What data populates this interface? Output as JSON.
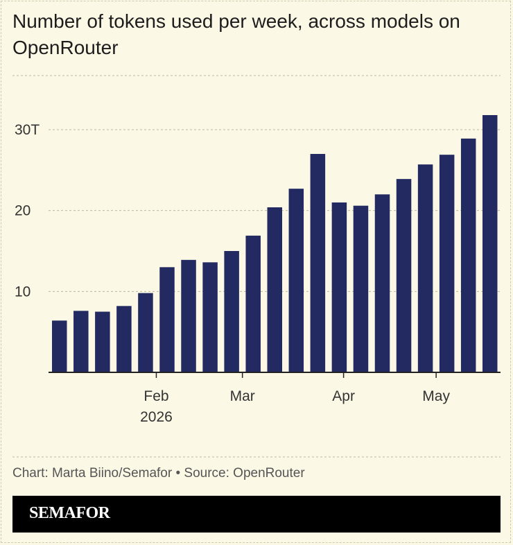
{
  "chart_data": {
    "type": "bar",
    "title": "Number of tokens used per week, across models on OpenRouter",
    "xlabel": "",
    "ylabel": "",
    "y_unit": "T",
    "ylim": [
      0,
      35
    ],
    "yticks": [
      {
        "value": 10,
        "label": "10"
      },
      {
        "value": 20,
        "label": "20"
      },
      {
        "value": 30,
        "label": "30T"
      }
    ],
    "xticks": [
      {
        "after_bar": 4,
        "label": "Feb",
        "sublabel": "2026"
      },
      {
        "after_bar": 8,
        "label": "Mar",
        "sublabel": ""
      },
      {
        "after_bar": 12.7,
        "label": "Apr",
        "sublabel": ""
      },
      {
        "after_bar": 17,
        "label": "May",
        "sublabel": ""
      }
    ],
    "values": [
      6.4,
      7.6,
      7.5,
      8.2,
      9.8,
      13.0,
      13.9,
      13.6,
      15.0,
      16.9,
      20.4,
      22.7,
      27.0,
      21.0,
      20.6,
      22.0,
      23.9,
      25.7,
      26.9,
      28.9,
      31.8
    ],
    "bar_color": "#232a62",
    "grid": true,
    "legend": "none"
  },
  "credit": "Chart: Marta Biino/Semafor • Source: OpenRouter",
  "brand": "SEMAFOR",
  "colors": {
    "background": "#fbf8e5",
    "bar": "#232a62",
    "brand_bar": "#000000"
  }
}
